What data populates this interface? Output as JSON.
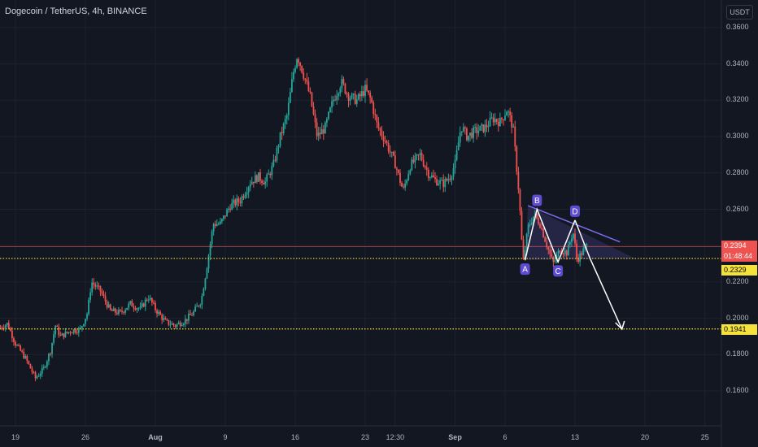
{
  "header": {
    "title": "Dogecoin / TetherUS, 4h, BINANCE",
    "currency": "USDT"
  },
  "colors": {
    "background": "#131722",
    "up": "#26a69a",
    "down": "#ef5350",
    "pattern": "#7b6cf0",
    "arrow": "#ffffff",
    "level_line": "#f5e23b",
    "current_badge": "#ef5350",
    "level_badge": "#f5e23b"
  },
  "chart_data": {
    "type": "candlestick",
    "symbol": "Dogecoin / TetherUS",
    "timeframe": "4h",
    "exchange": "BINANCE",
    "ylim": [
      0.15,
      0.37
    ],
    "y_ticks": [
      "0.1600",
      "0.1800",
      "0.2000",
      "0.2200",
      "0.2400",
      "0.2600",
      "0.2800",
      "0.3000",
      "0.3200",
      "0.3400",
      "0.3600"
    ],
    "y_tick_values": [
      0.16,
      0.18,
      0.2,
      0.22,
      0.24,
      0.26,
      0.28,
      0.3,
      0.32,
      0.34,
      0.36
    ],
    "x_ticks": [
      "19",
      "26",
      "Aug",
      "9",
      "16",
      "23",
      "12:30",
      "Sep",
      "6",
      "13",
      "20",
      "25"
    ],
    "x_tick_days": [
      19,
      26,
      33,
      40,
      47,
      54,
      57,
      63,
      68,
      75,
      82,
      88
    ],
    "x_range_days": [
      17.3,
      96.5
    ],
    "current_price": {
      "value": 0.2394,
      "label": "0.2394",
      "countdown": "01:48:44"
    },
    "levels": [
      {
        "value": 0.2329,
        "label": "0.2329"
      },
      {
        "value": 0.1941,
        "label": "0.1941"
      }
    ],
    "price_path": [
      [
        17.5,
        0.195
      ],
      [
        18.2,
        0.197
      ],
      [
        19.0,
        0.186
      ],
      [
        20.0,
        0.178
      ],
      [
        21.0,
        0.167
      ],
      [
        21.8,
        0.172
      ],
      [
        22.5,
        0.182
      ],
      [
        23.0,
        0.196
      ],
      [
        23.5,
        0.19
      ],
      [
        24.5,
        0.193
      ],
      [
        25.5,
        0.194
      ],
      [
        26.2,
        0.203
      ],
      [
        26.6,
        0.22
      ],
      [
        27.5,
        0.215
      ],
      [
        28.5,
        0.204
      ],
      [
        29.5,
        0.203
      ],
      [
        30.5,
        0.208
      ],
      [
        31.5,
        0.205
      ],
      [
        32.3,
        0.212
      ],
      [
        33.0,
        0.205
      ],
      [
        34.0,
        0.198
      ],
      [
        35.0,
        0.196
      ],
      [
        36.0,
        0.199
      ],
      [
        36.8,
        0.203
      ],
      [
        37.6,
        0.21
      ],
      [
        38.2,
        0.23
      ],
      [
        38.8,
        0.252
      ],
      [
        39.5,
        0.252
      ],
      [
        40.5,
        0.262
      ],
      [
        41.5,
        0.265
      ],
      [
        42.5,
        0.275
      ],
      [
        43.3,
        0.278
      ],
      [
        44.0,
        0.275
      ],
      [
        44.8,
        0.284
      ],
      [
        45.5,
        0.3
      ],
      [
        46.2,
        0.312
      ],
      [
        46.8,
        0.335
      ],
      [
        47.2,
        0.345
      ],
      [
        47.8,
        0.335
      ],
      [
        48.5,
        0.322
      ],
      [
        49.2,
        0.3
      ],
      [
        50.0,
        0.305
      ],
      [
        50.8,
        0.32
      ],
      [
        51.6,
        0.33
      ],
      [
        52.4,
        0.322
      ],
      [
        53.2,
        0.32
      ],
      [
        54.0,
        0.326
      ],
      [
        54.6,
        0.32
      ],
      [
        55.2,
        0.306
      ],
      [
        56.0,
        0.298
      ],
      [
        57.0,
        0.285
      ],
      [
        57.8,
        0.27
      ],
      [
        58.5,
        0.284
      ],
      [
        59.5,
        0.29
      ],
      [
        60.3,
        0.28
      ],
      [
        61.0,
        0.276
      ],
      [
        61.8,
        0.274
      ],
      [
        62.5,
        0.278
      ],
      [
        63.0,
        0.285
      ],
      [
        63.6,
        0.306
      ],
      [
        64.2,
        0.3
      ],
      [
        65.0,
        0.303
      ],
      [
        66.0,
        0.305
      ],
      [
        66.8,
        0.31
      ],
      [
        67.5,
        0.308
      ],
      [
        68.2,
        0.315
      ],
      [
        68.8,
        0.305
      ],
      [
        69.4,
        0.268
      ],
      [
        69.8,
        0.23
      ],
      [
        70.3,
        0.25
      ],
      [
        70.9,
        0.257
      ],
      [
        71.5,
        0.252
      ],
      [
        72.2,
        0.24
      ],
      [
        72.8,
        0.23
      ],
      [
        73.5,
        0.238
      ],
      [
        74.2,
        0.236
      ],
      [
        74.8,
        0.248
      ],
      [
        75.2,
        0.232
      ],
      [
        75.8,
        0.237
      ],
      [
        76.3,
        0.241
      ]
    ],
    "pattern": {
      "points": [
        {
          "label": "A",
          "x": 70.0,
          "y": 0.232
        },
        {
          "label": "B",
          "x": 71.2,
          "y": 0.26
        },
        {
          "label": "C",
          "x": 73.3,
          "y": 0.231
        },
        {
          "label": "D",
          "x": 75.0,
          "y": 0.254
        }
      ],
      "resistance_line": [
        [
          70.3,
          0.262
        ],
        [
          79.5,
          0.242
        ]
      ],
      "zone": {
        "x": [
          70.0,
          81.0
        ],
        "y": [
          0.232,
          0.262
        ]
      },
      "projection_arrow": [
        [
          75.0,
          0.254
        ],
        [
          76.5,
          0.233
        ],
        [
          79.7,
          0.194
        ]
      ]
    }
  }
}
